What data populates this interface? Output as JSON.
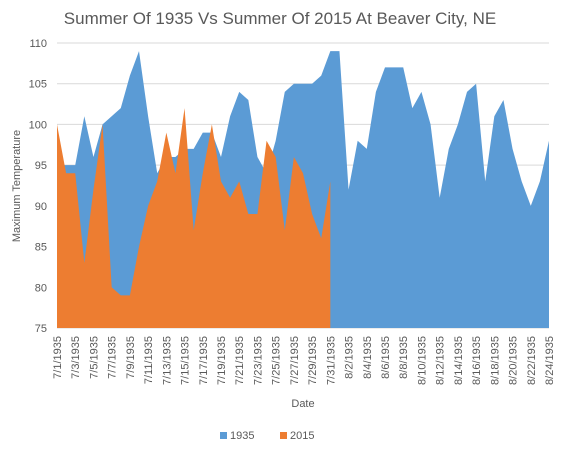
{
  "chart_data": {
    "type": "area",
    "title": "Summer Of 1935 Vs Summer Of 2015 At Beaver City, NE",
    "x_label": "Date",
    "y_label": "Maximum Temperature",
    "categories": [
      "7/1/1935",
      null,
      "7/3/1935",
      null,
      "7/5/1935",
      null,
      "7/7/1935",
      null,
      "7/9/1935",
      null,
      "7/11/1935",
      null,
      "7/13/1935",
      null,
      "7/15/1935",
      null,
      "7/17/1935",
      null,
      "7/19/1935",
      null,
      "7/21/1935",
      null,
      "7/23/1935",
      null,
      "7/25/1935",
      null,
      "7/27/1935",
      null,
      "7/29/1935",
      null,
      "7/31/1935",
      null,
      "8/2/1935",
      null,
      "8/4/1935",
      null,
      "8/6/1935",
      null,
      "8/8/1935",
      null,
      "8/10/1935",
      null,
      "8/12/1935",
      null,
      "8/14/1935",
      null,
      "8/16/1935",
      null,
      "8/18/1935",
      null,
      "8/20/1935",
      null,
      "8/22/1935",
      null,
      "8/24/1935"
    ],
    "series": [
      {
        "name": "1935",
        "color": "#5b9bd5",
        "values": [
          95,
          95,
          95,
          101,
          96,
          100,
          101,
          102,
          106,
          109,
          101,
          94,
          96,
          96,
          97,
          97,
          99,
          99,
          96,
          101,
          104,
          103,
          96,
          94,
          98,
          104,
          105,
          105,
          105,
          106,
          109,
          109,
          92,
          98,
          97,
          104,
          107,
          107,
          107,
          102,
          104,
          100,
          91,
          97,
          100,
          104,
          105,
          93,
          101,
          103,
          97,
          93,
          90,
          93,
          98
        ]
      },
      {
        "name": "2015",
        "color": "#ed7d31",
        "values": [
          100,
          94,
          94,
          83,
          92,
          100,
          80,
          79,
          79,
          85,
          90,
          93,
          99,
          94,
          102,
          87,
          94,
          100,
          93,
          91,
          93,
          89,
          89,
          98,
          96,
          87,
          96,
          94,
          89,
          86,
          93,
          null,
          null,
          null,
          null,
          null,
          null,
          null,
          null,
          null,
          null,
          null,
          null,
          null,
          null,
          null,
          null,
          null,
          null,
          null,
          null,
          null,
          null,
          null,
          null
        ]
      }
    ],
    "ylim": [
      75,
      110
    ],
    "yticks": [
      75,
      80,
      85,
      90,
      95,
      100,
      105,
      110
    ],
    "grid": true,
    "legend": "bottom"
  }
}
